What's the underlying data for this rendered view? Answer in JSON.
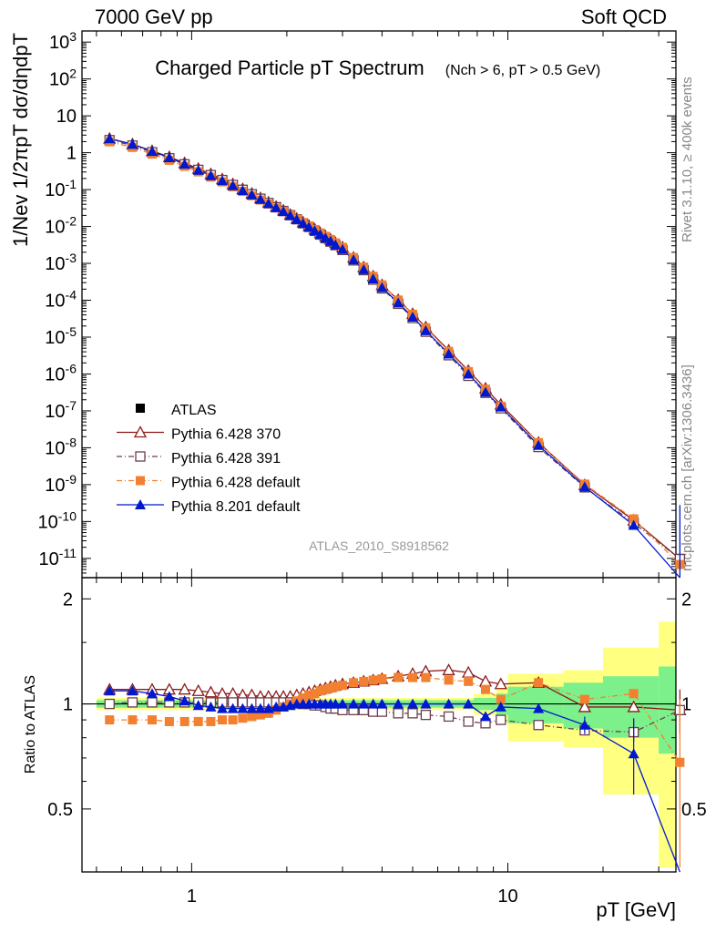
{
  "header": {
    "left": "7000 GeV pp",
    "right": "Soft QCD"
  },
  "side_labels": {
    "rivet": "Rivet 3.1.10, ≥ 400k events",
    "mcplots": "mcplots.cern.ch [arXiv:1306.3436]"
  },
  "chart_data": [
    {
      "type": "line",
      "panel": "main",
      "title": "Charged Particle pT Spectrum",
      "title_sub": "(Nch > 6, pT > 0.5 GeV)",
      "ylabel": "1/Nev 1/2πpT dσ/dηdpT",
      "xlabel": "pT [GeV]",
      "x_scale": "log",
      "y_scale": "log",
      "xlim": [
        0.45,
        34
      ],
      "ylim": [
        3e-12,
        2000
      ],
      "x_ticks": [
        "1",
        "10"
      ],
      "y_ticks": [
        "10^3",
        "10^2",
        "10",
        "1",
        "10^-1",
        "10^-2",
        "10^-3",
        "10^-4",
        "10^-5",
        "10^-6",
        "10^-7",
        "10^-8",
        "10^-9",
        "10^-10",
        "10^-11"
      ],
      "watermark": "ATLAS_2010_S8918562",
      "legend_position": "lower-left",
      "x": [
        0.55,
        0.65,
        0.75,
        0.85,
        0.95,
        1.05,
        1.15,
        1.25,
        1.35,
        1.45,
        1.55,
        1.65,
        1.75,
        1.85,
        1.95,
        2.05,
        2.15,
        2.25,
        2.35,
        2.45,
        2.55,
        2.65,
        2.75,
        2.85,
        3.0,
        3.25,
        3.5,
        3.75,
        4.0,
        4.5,
        5.0,
        5.5,
        6.5,
        7.5,
        8.5,
        9.5,
        12.5,
        17.5,
        25.0,
        35.0
      ],
      "data_y": [
        2.2,
        1.55,
        1.02,
        0.7,
        0.48,
        0.34,
        0.245,
        0.18,
        0.132,
        0.098,
        0.074,
        0.056,
        0.043,
        0.033,
        0.026,
        0.02,
        0.0155,
        0.0122,
        0.0097,
        0.0077,
        0.0061,
        0.0049,
        0.004,
        0.0032,
        0.0024,
        0.00125,
        0.00068,
        0.00038,
        0.00022,
        8.5e-05,
        3.5e-05,
        1.5e-05,
        3.5e-06,
        1e-06,
        3.5e-07,
        1.3e-07,
        1.2e-08,
        1e-09,
        1.1e-10,
        1e-11
      ],
      "series": [
        {
          "name": "ATLAS",
          "color": "#000000",
          "marker": "square-filled",
          "dash": "none"
        },
        {
          "name": "Pythia 6.428 370",
          "color": "#8b1a1a",
          "marker": "triangle-open",
          "dash": "solid"
        },
        {
          "name": "Pythia 6.428 391",
          "color": "#6b3f4f",
          "marker": "square-open",
          "dash": "dashdot"
        },
        {
          "name": "Pythia 6.428 default",
          "color": "#f28030",
          "marker": "square-filled",
          "dash": "dashdot"
        },
        {
          "name": "Pythia 8.201 default",
          "color": "#0018d0",
          "marker": "triangle-filled",
          "dash": "solid"
        }
      ]
    },
    {
      "type": "line",
      "panel": "ratio",
      "ylabel": "Ratio to ATLAS",
      "ylim": [
        0.33,
        2.3
      ],
      "y_ticks": [
        "0.5",
        "1",
        "2"
      ],
      "x": [
        0.55,
        0.65,
        0.75,
        0.85,
        0.95,
        1.05,
        1.15,
        1.25,
        1.35,
        1.45,
        1.55,
        1.65,
        1.75,
        1.85,
        1.95,
        2.05,
        2.15,
        2.25,
        2.35,
        2.45,
        2.55,
        2.65,
        2.75,
        2.85,
        3.0,
        3.25,
        3.5,
        3.75,
        4.0,
        4.5,
        5.0,
        5.5,
        6.5,
        7.5,
        8.5,
        9.5,
        12.5,
        17.5,
        25.0,
        35.0
      ],
      "band_x": [
        0.5,
        0.6,
        0.7,
        0.8,
        0.9,
        1.0,
        1.1,
        1.2,
        1.3,
        1.4,
        1.5,
        1.6,
        1.7,
        1.8,
        1.9,
        2.0,
        2.1,
        2.2,
        2.3,
        2.4,
        2.5,
        2.6,
        2.7,
        2.8,
        2.9,
        3.1,
        3.4,
        3.6,
        3.9,
        4.2,
        4.8,
        5.2,
        5.8,
        7.2,
        7.8,
        9.2,
        10.0,
        15.0,
        20.0,
        30.0,
        40.0
      ],
      "band_inner": [
        0.025,
        0.025,
        0.025,
        0.025,
        0.025,
        0.025,
        0.025,
        0.025,
        0.025,
        0.025,
        0.025,
        0.025,
        0.025,
        0.025,
        0.025,
        0.025,
        0.025,
        0.025,
        0.025,
        0.025,
        0.025,
        0.025,
        0.025,
        0.025,
        0.025,
        0.025,
        0.025,
        0.025,
        0.025,
        0.025,
        0.025,
        0.025,
        0.025,
        0.025,
        0.04,
        0.07,
        0.12,
        0.15,
        0.2,
        0.28
      ],
      "band_outer": [
        0.04,
        0.04,
        0.04,
        0.04,
        0.04,
        0.04,
        0.04,
        0.04,
        0.04,
        0.04,
        0.04,
        0.04,
        0.04,
        0.04,
        0.04,
        0.04,
        0.04,
        0.04,
        0.04,
        0.04,
        0.04,
        0.04,
        0.04,
        0.04,
        0.04,
        0.04,
        0.04,
        0.04,
        0.04,
        0.04,
        0.04,
        0.04,
        0.04,
        0.04,
        0.07,
        0.12,
        0.22,
        0.25,
        0.45,
        0.72
      ],
      "series": [
        {
          "name": "Pythia 6.428 370",
          "values": [
            1.1,
            1.1,
            1.1,
            1.1,
            1.1,
            1.09,
            1.08,
            1.07,
            1.07,
            1.06,
            1.06,
            1.05,
            1.05,
            1.05,
            1.05,
            1.05,
            1.06,
            1.07,
            1.08,
            1.09,
            1.1,
            1.11,
            1.12,
            1.13,
            1.14,
            1.15,
            1.16,
            1.17,
            1.18,
            1.2,
            1.22,
            1.24,
            1.25,
            1.23,
            1.16,
            1.14,
            1.15,
            0.98,
            0.98,
            0.96
          ]
        },
        {
          "name": "Pythia 6.428 391",
          "values": [
            1.0,
            1.01,
            1.01,
            1.01,
            1.01,
            1.01,
            1.01,
            1.01,
            1.01,
            1.01,
            1.01,
            1.01,
            1.01,
            1.01,
            1.01,
            1.01,
            1.01,
            1.0,
            1.0,
            0.99,
            0.99,
            0.98,
            0.97,
            0.97,
            0.96,
            0.96,
            0.96,
            0.95,
            0.95,
            0.94,
            0.94,
            0.93,
            0.92,
            0.89,
            0.88,
            0.9,
            0.87,
            0.84,
            0.83,
            0.96
          ]
        },
        {
          "name": "Pythia 6.428 default",
          "values": [
            0.9,
            0.9,
            0.9,
            0.89,
            0.89,
            0.89,
            0.89,
            0.9,
            0.9,
            0.91,
            0.92,
            0.93,
            0.94,
            0.96,
            0.98,
            1.0,
            1.02,
            1.04,
            1.06,
            1.07,
            1.09,
            1.1,
            1.11,
            1.12,
            1.13,
            1.15,
            1.16,
            1.17,
            1.18,
            1.19,
            1.19,
            1.19,
            1.17,
            1.16,
            1.1,
            1.03,
            1.15,
            1.03,
            1.07,
            0.68
          ]
        },
        {
          "name": "Pythia 8.201 default",
          "values": [
            1.09,
            1.09,
            1.07,
            1.05,
            1.02,
            0.99,
            0.98,
            0.97,
            0.97,
            0.97,
            0.97,
            0.97,
            0.97,
            0.98,
            0.98,
            0.99,
            1.0,
            1.0,
            1.0,
            1.0,
            1.0,
            1.0,
            1.0,
            1.0,
            1.0,
            1.0,
            1.0,
            1.0,
            1.0,
            1.0,
            1.0,
            1.0,
            1.0,
            1.0,
            0.92,
            0.98,
            0.97,
            0.87,
            0.72,
            0.28
          ]
        }
      ]
    }
  ]
}
